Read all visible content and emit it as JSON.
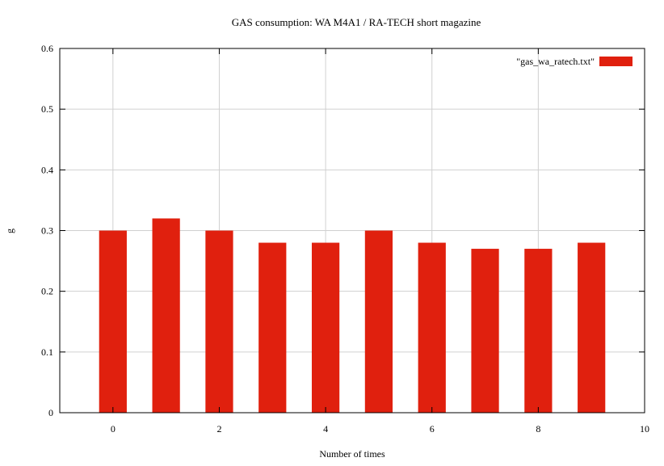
{
  "chart_data": {
    "type": "bar",
    "title": "GAS consumption: WA M4A1 / RA-TECH short magazine",
    "xlabel": "Number of times",
    "ylabel": "g",
    "xlim": [
      -1,
      10
    ],
    "ylim": [
      0,
      0.6
    ],
    "x_ticks": [
      "0",
      "2",
      "4",
      "6",
      "8",
      "10"
    ],
    "y_ticks": [
      "0",
      "0.1",
      "0.2",
      "0.3",
      "0.4",
      "0.5",
      "0.6"
    ],
    "grid": true,
    "legend_position": "top-right",
    "series": [
      {
        "name": "\"gas_wa_ratech.txt\"",
        "color": "#e0200e",
        "x": [
          0,
          1,
          2,
          3,
          4,
          5,
          6,
          7,
          8,
          9
        ],
        "values": [
          0.3,
          0.32,
          0.3,
          0.28,
          0.28,
          0.3,
          0.28,
          0.27,
          0.27,
          0.28
        ]
      }
    ]
  }
}
